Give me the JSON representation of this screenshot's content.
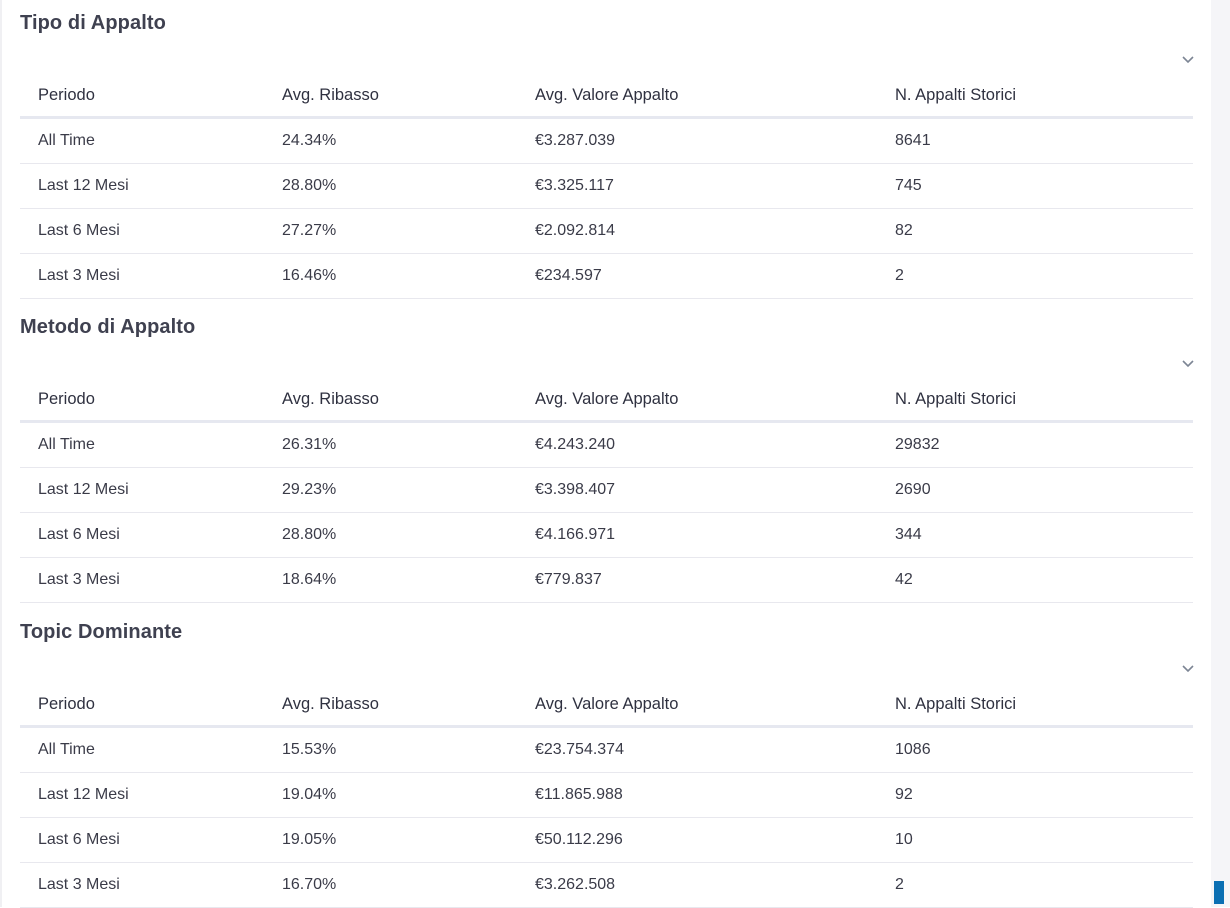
{
  "columns": [
    "Periodo",
    "Avg. Ribasso",
    "Avg. Valore Appalto",
    "N. Appalti Storici"
  ],
  "sections": [
    {
      "title": "Tipo di Appalto",
      "rows": [
        [
          "All Time",
          "24.34%",
          "€3.287.039",
          "8641"
        ],
        [
          "Last 12 Mesi",
          "28.80%",
          "€3.325.117",
          "745"
        ],
        [
          "Last 6 Mesi",
          "27.27%",
          "€2.092.814",
          "82"
        ],
        [
          "Last 3 Mesi",
          "16.46%",
          "€234.597",
          "2"
        ]
      ]
    },
    {
      "title": "Metodo di Appalto",
      "rows": [
        [
          "All Time",
          "26.31%",
          "€4.243.240",
          "29832"
        ],
        [
          "Last 12 Mesi",
          "29.23%",
          "€3.398.407",
          "2690"
        ],
        [
          "Last 6 Mesi",
          "28.80%",
          "€4.166.971",
          "344"
        ],
        [
          "Last 3 Mesi",
          "18.64%",
          "€779.837",
          "42"
        ]
      ]
    },
    {
      "title": "Topic Dominante",
      "rows": [
        [
          "All Time",
          "15.53%",
          "€23.754.374",
          "1086"
        ],
        [
          "Last 12 Mesi",
          "19.04%",
          "€11.865.988",
          "92"
        ],
        [
          "Last 6 Mesi",
          "19.05%",
          "€50.112.296",
          "10"
        ],
        [
          "Last 3 Mesi",
          "16.70%",
          "€3.262.508",
          "2"
        ]
      ]
    }
  ]
}
